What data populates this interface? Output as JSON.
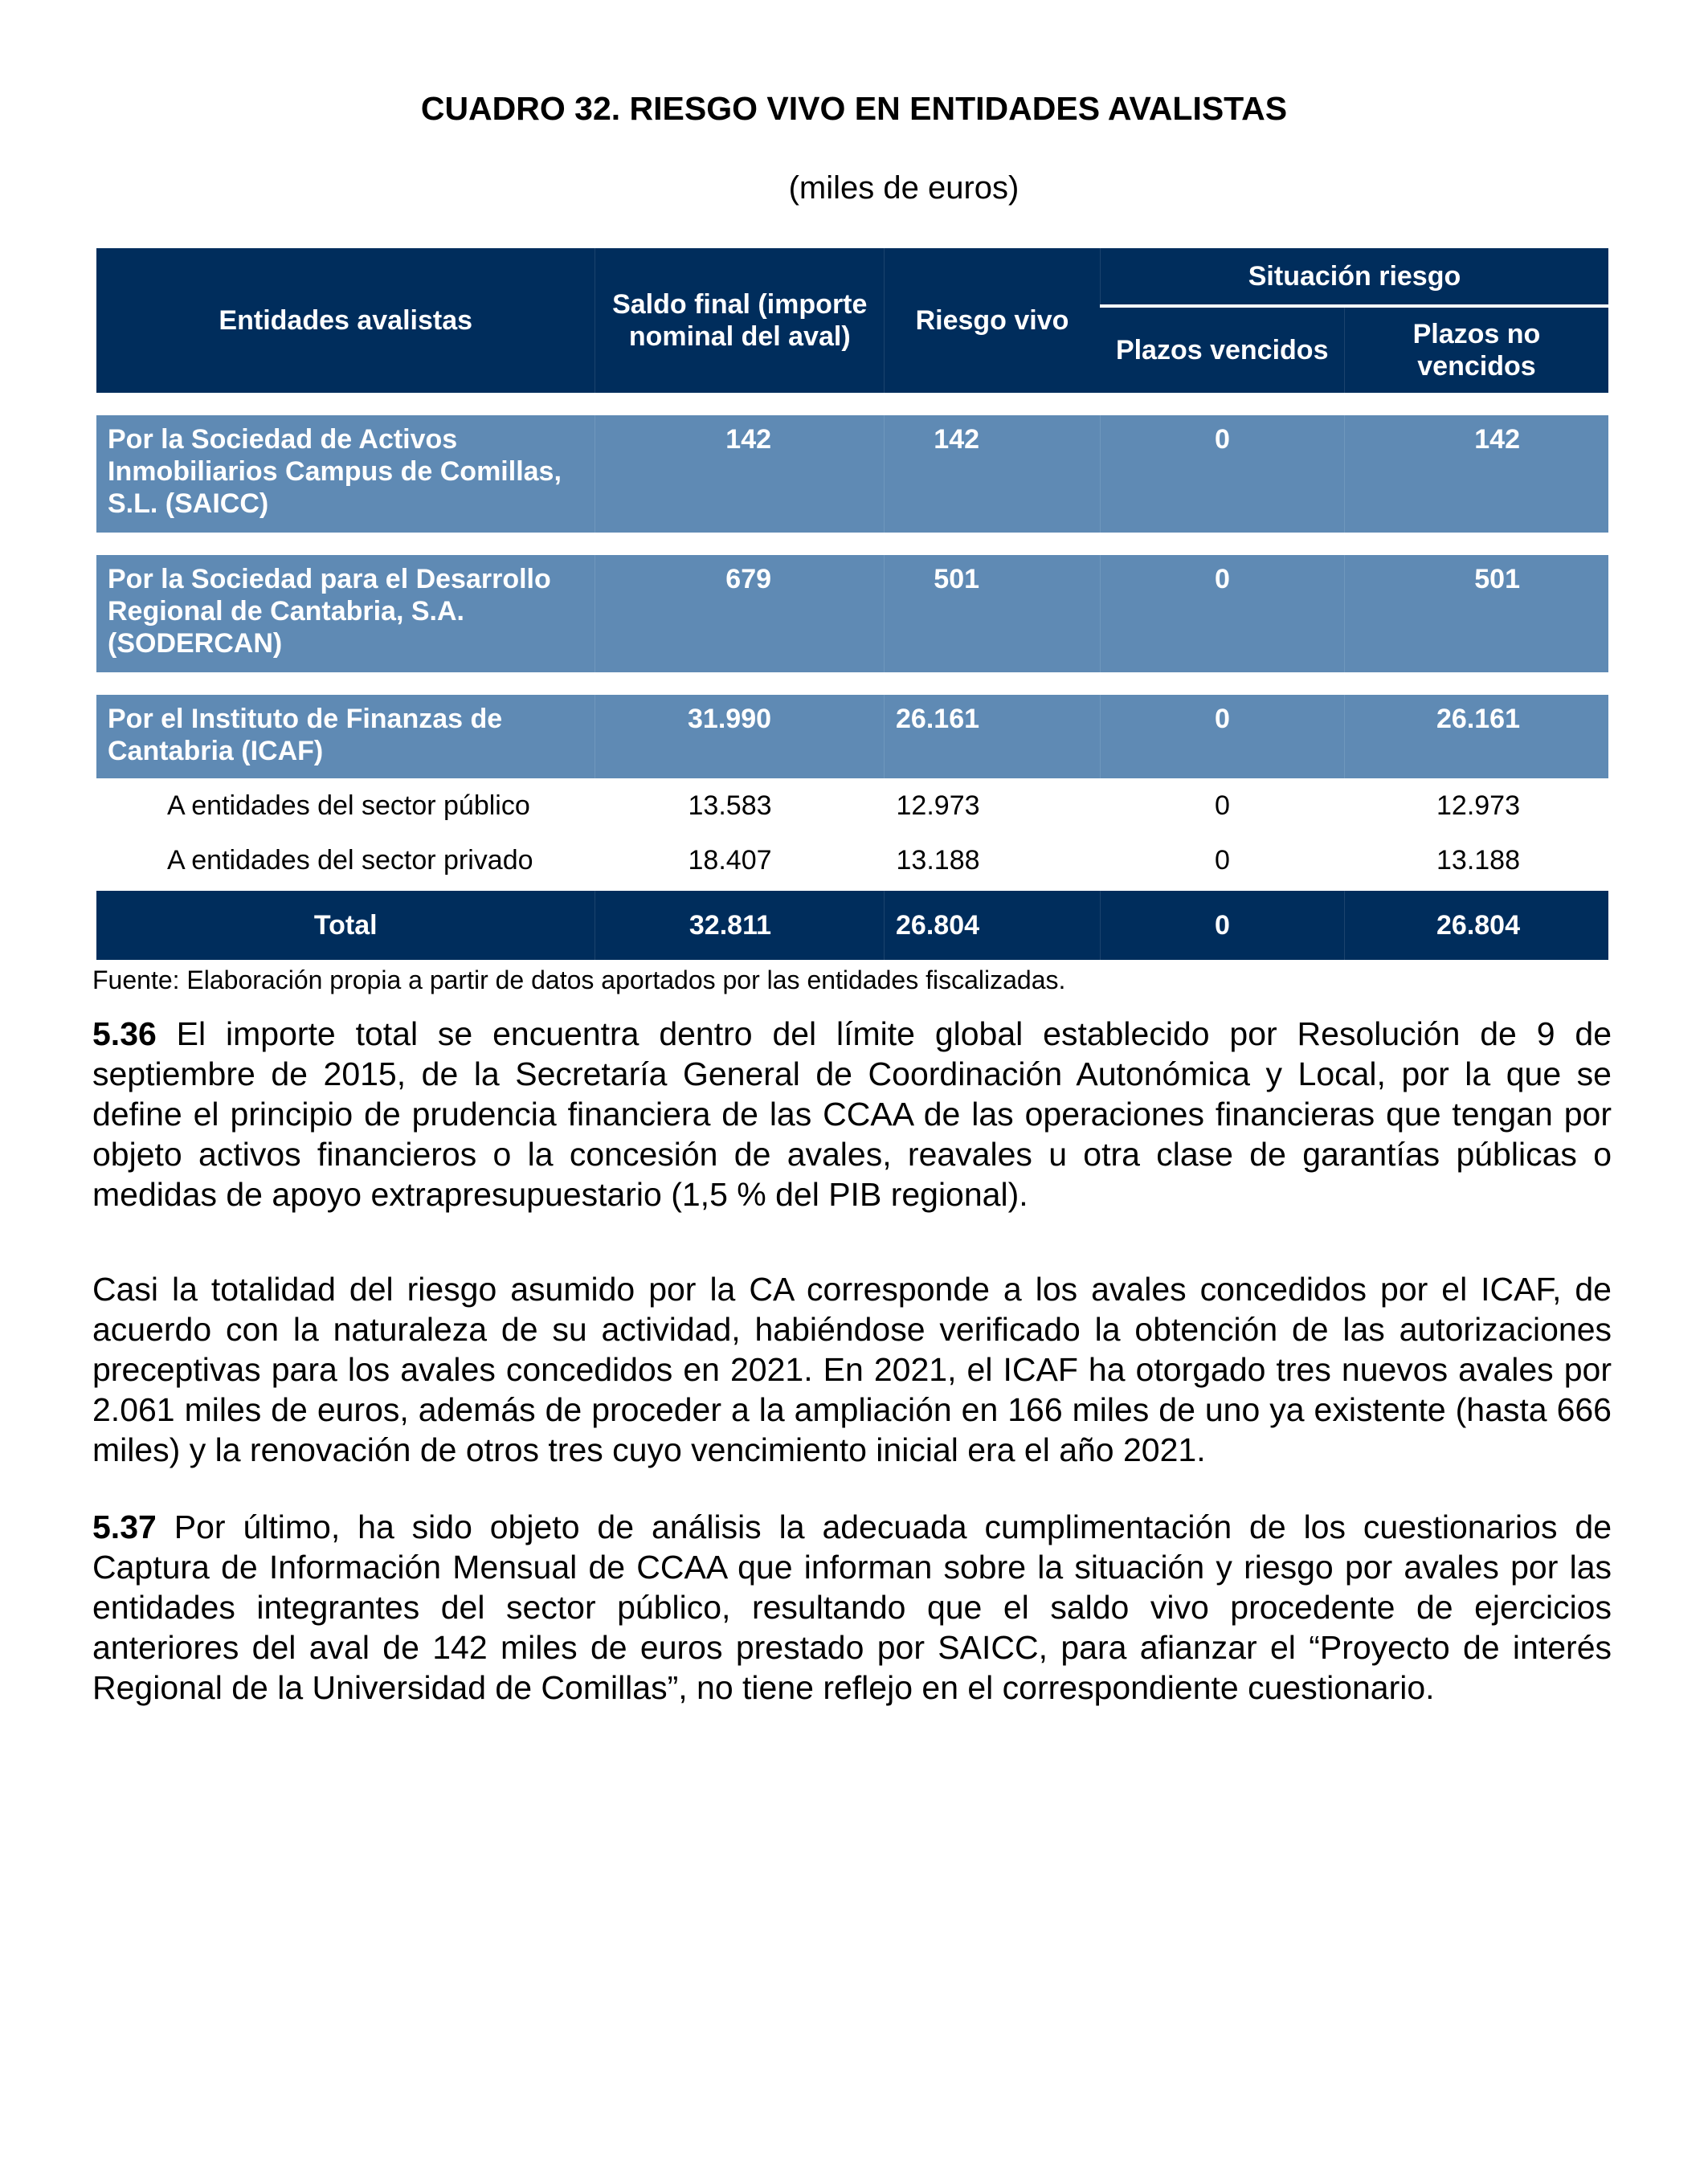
{
  "title": "CUADRO 32. RIESGO VIVO EN ENTIDADES AVALISTAS",
  "subtitle": "(miles de euros)",
  "table": {
    "headers": {
      "entidades": "Entidades avalistas",
      "saldo_final": "Saldo final (importe nominal del aval)",
      "riesgo_vivo": "Riesgo vivo",
      "situacion": "Situación riesgo",
      "plazos_vencidos": "Plazos vencidos",
      "plazos_no_vencidos": "Plazos no vencidos"
    },
    "rows": [
      {
        "label": "Por la Sociedad de Activos Inmobiliarios Campus de Comillas, S.L. (SAICC)",
        "saldo": "142",
        "riesgo": "142",
        "vencidos": "0",
        "no_vencidos": "142"
      },
      {
        "label": "Por la Sociedad para el Desarrollo Regional de Cantabria, S.A. (SODERCAN)",
        "saldo": "679",
        "riesgo": "501",
        "vencidos": "0",
        "no_vencidos": "501"
      },
      {
        "label": "Por el Instituto de Finanzas de Cantabria (ICAF)",
        "saldo": "31.990",
        "riesgo": "26.161",
        "vencidos": "0",
        "no_vencidos": "26.161"
      },
      {
        "label": "A entidades del sector público",
        "saldo": "13.583",
        "riesgo": "12.973",
        "vencidos": "0",
        "no_vencidos": "12.973"
      },
      {
        "label": "A entidades del sector privado",
        "saldo": "18.407",
        "riesgo": "13.188",
        "vencidos": "0",
        "no_vencidos": "13.188"
      }
    ],
    "total": {
      "label": "Total",
      "saldo": "32.811",
      "riesgo": "26.804",
      "vencidos": "0",
      "no_vencidos": "26.804"
    }
  },
  "source": "Fuente: Elaboración propia a partir de datos aportados por las entidades fiscalizadas.",
  "paragraphs": [
    {
      "num": "5.36",
      "text": " El importe total se encuentra dentro del límite global establecido por Resolución de 9 de septiembre de 2015, de la Secretaría General de Coordinación Autonómica y Local, por la que se define el principio de prudencia financiera de las CCAA de las operaciones financieras que tengan por objeto activos financieros o la concesión de avales, reavales u otra clase de garantías públicas o medidas de apoyo extrapresupuestario (1,5 % del PIB regional)."
    },
    {
      "num": "",
      "text": "Casi la totalidad del riesgo asumido por la CA corresponde a los avales concedidos por el ICAF, de acuerdo con la naturaleza de su actividad, habiéndose verificado la obtención de las autorizaciones preceptivas para los avales concedidos en 2021. En 2021, el ICAF ha otorgado tres nuevos avales por 2.061 miles de euros, además de proceder a la ampliación en 166 miles de uno ya existente (hasta 666 miles) y la renovación de otros tres cuyo vencimiento inicial era el año 2021."
    },
    {
      "num": "5.37",
      "text": " Por último, ha sido objeto de análisis la adecuada cumplimentación de los cuestionarios de Captura de Información Mensual de CCAA que informan sobre la situación y riesgo por avales por las entidades integrantes del sector público, resultando que el saldo vivo procedente de ejercicios anteriores del aval de 142 miles de euros prestado por SAICC, para afianzar el “Proyecto de interés Regional de la Universidad de Comillas”, no tiene reflejo en el correspondiente cuestionario."
    }
  ],
  "colors": {
    "header_bg": "#002D5C",
    "row_bg": "#5F8AB4"
  }
}
